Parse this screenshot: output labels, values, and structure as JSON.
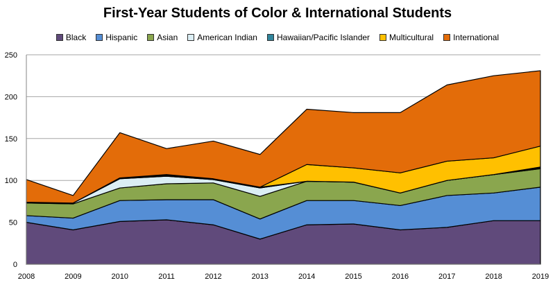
{
  "chart_data": {
    "type": "area",
    "stacked": true,
    "title": "First-Year Students of Color & International Students",
    "xlabel": "",
    "ylabel": "",
    "ylim": [
      0,
      250
    ],
    "yticks": [
      "0",
      "50",
      "100",
      "150",
      "200",
      "250"
    ],
    "grid": true,
    "legend_position": "top",
    "categories": [
      "2008",
      "2009",
      "2010",
      "2011",
      "2012",
      "2013",
      "2014",
      "2015",
      "2016",
      "2017",
      "2018",
      "2019"
    ],
    "series": [
      {
        "name": "Black",
        "color": "#604a7b",
        "values": [
          50,
          41,
          51,
          53,
          47,
          30,
          47,
          48,
          41,
          44,
          52,
          52
        ]
      },
      {
        "name": "Hispanic",
        "color": "#558ed5",
        "values": [
          8,
          14,
          25,
          24,
          30,
          24,
          29,
          28,
          29,
          38,
          33,
          40
        ]
      },
      {
        "name": "Asian",
        "color": "#8aa64e",
        "values": [
          15,
          17,
          15,
          19,
          20,
          27,
          23,
          22,
          15,
          18,
          22,
          22
        ]
      },
      {
        "name": "American Indian",
        "color": "#dbeef4",
        "values": [
          1,
          1,
          11,
          9,
          4,
          10,
          0,
          0,
          0,
          0,
          0,
          1
        ]
      },
      {
        "name": "Hawaiian/Pacific Islander",
        "color": "#31859c",
        "values": [
          0,
          0,
          1,
          1,
          1,
          1,
          0,
          0,
          0,
          0,
          0,
          1
        ]
      },
      {
        "name": "Multicultural",
        "color": "#ffc000",
        "values": [
          0,
          0,
          0,
          1,
          0,
          0,
          20,
          17,
          24,
          23,
          20,
          25
        ]
      },
      {
        "name": "International",
        "color": "#e36c09",
        "values": [
          27,
          9,
          54,
          31,
          45,
          39,
          66,
          66,
          72,
          91,
          98,
          90
        ]
      }
    ]
  }
}
